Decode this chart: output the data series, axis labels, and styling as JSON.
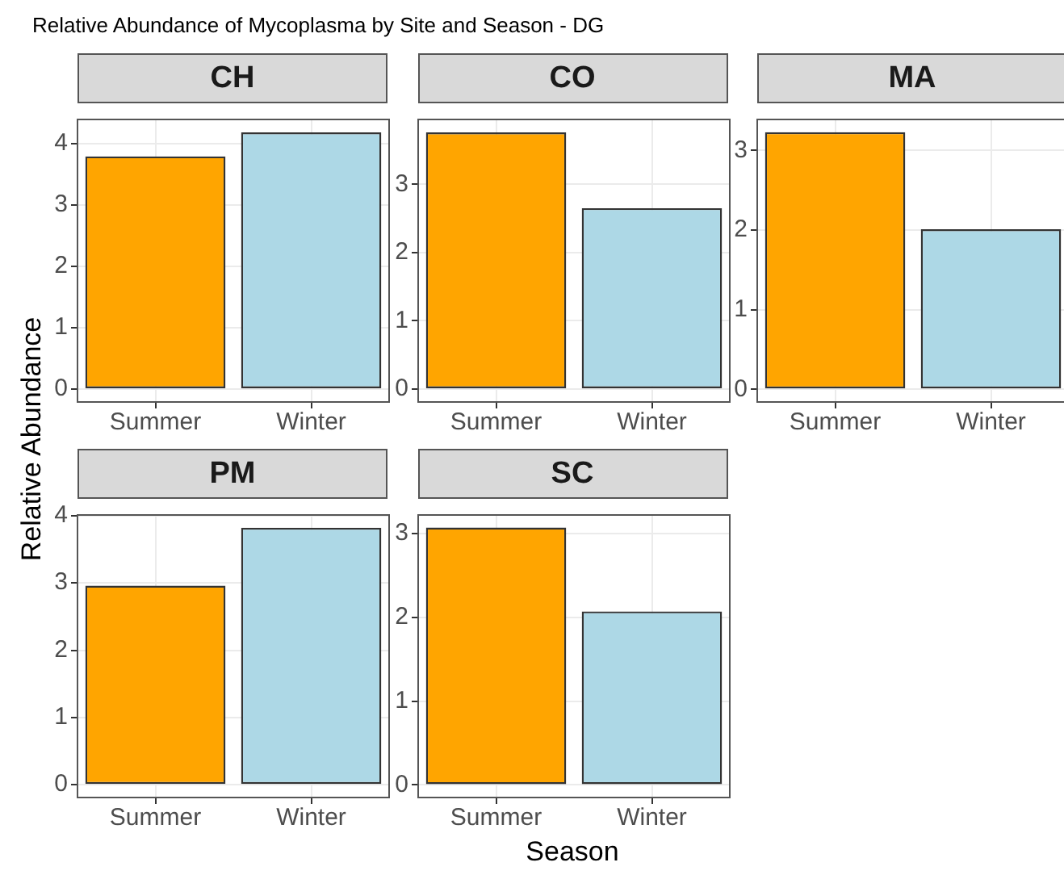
{
  "chart_data": [
    {
      "type": "bar",
      "title": "CH",
      "ylabel": "Relative Abundance",
      "annotations": [
        "Relative Abundance of Mycoplasma by Site and Season - DG"
      ],
      "categories": [
        "Summer",
        "Winter"
      ],
      "values": [
        3.79,
        4.18
      ],
      "colors": [
        "#ffa500",
        "#add8e6"
      ],
      "ylim": [
        -0.21,
        4.39
      ],
      "yticks": [
        0,
        1,
        2,
        3,
        4
      ],
      "grid": true
    },
    {
      "type": "bar",
      "title": "CO",
      "categories": [
        "Summer",
        "Winter"
      ],
      "values": [
        3.76,
        2.65
      ],
      "colors": [
        "#ffa500",
        "#add8e6"
      ],
      "ylim": [
        -0.19,
        3.95
      ],
      "yticks": [
        0,
        1,
        2,
        3
      ],
      "grid": true
    },
    {
      "type": "bar",
      "title": "MA",
      "categories": [
        "Summer",
        "Winter"
      ],
      "values": [
        3.23,
        2.01
      ],
      "colors": [
        "#ffa500",
        "#add8e6"
      ],
      "ylim": [
        -0.16,
        3.39
      ],
      "yticks": [
        0,
        1,
        2,
        3
      ],
      "grid": true
    },
    {
      "type": "bar",
      "title": "PM",
      "categories": [
        "Summer",
        "Winter"
      ],
      "values": [
        2.96,
        3.82
      ],
      "colors": [
        "#ffa500",
        "#add8e6"
      ],
      "ylim": [
        -0.19,
        4.01
      ],
      "yticks": [
        0,
        1,
        2,
        3,
        4
      ],
      "grid": true
    },
    {
      "type": "bar",
      "title": "SC",
      "xlabel": "Season",
      "categories": [
        "Summer",
        "Winter"
      ],
      "values": [
        3.07,
        2.07
      ],
      "colors": [
        "#ffa500",
        "#add8e6"
      ],
      "ylim": [
        -0.15,
        3.22
      ],
      "yticks": [
        0,
        1,
        2,
        3
      ],
      "grid": true
    }
  ]
}
